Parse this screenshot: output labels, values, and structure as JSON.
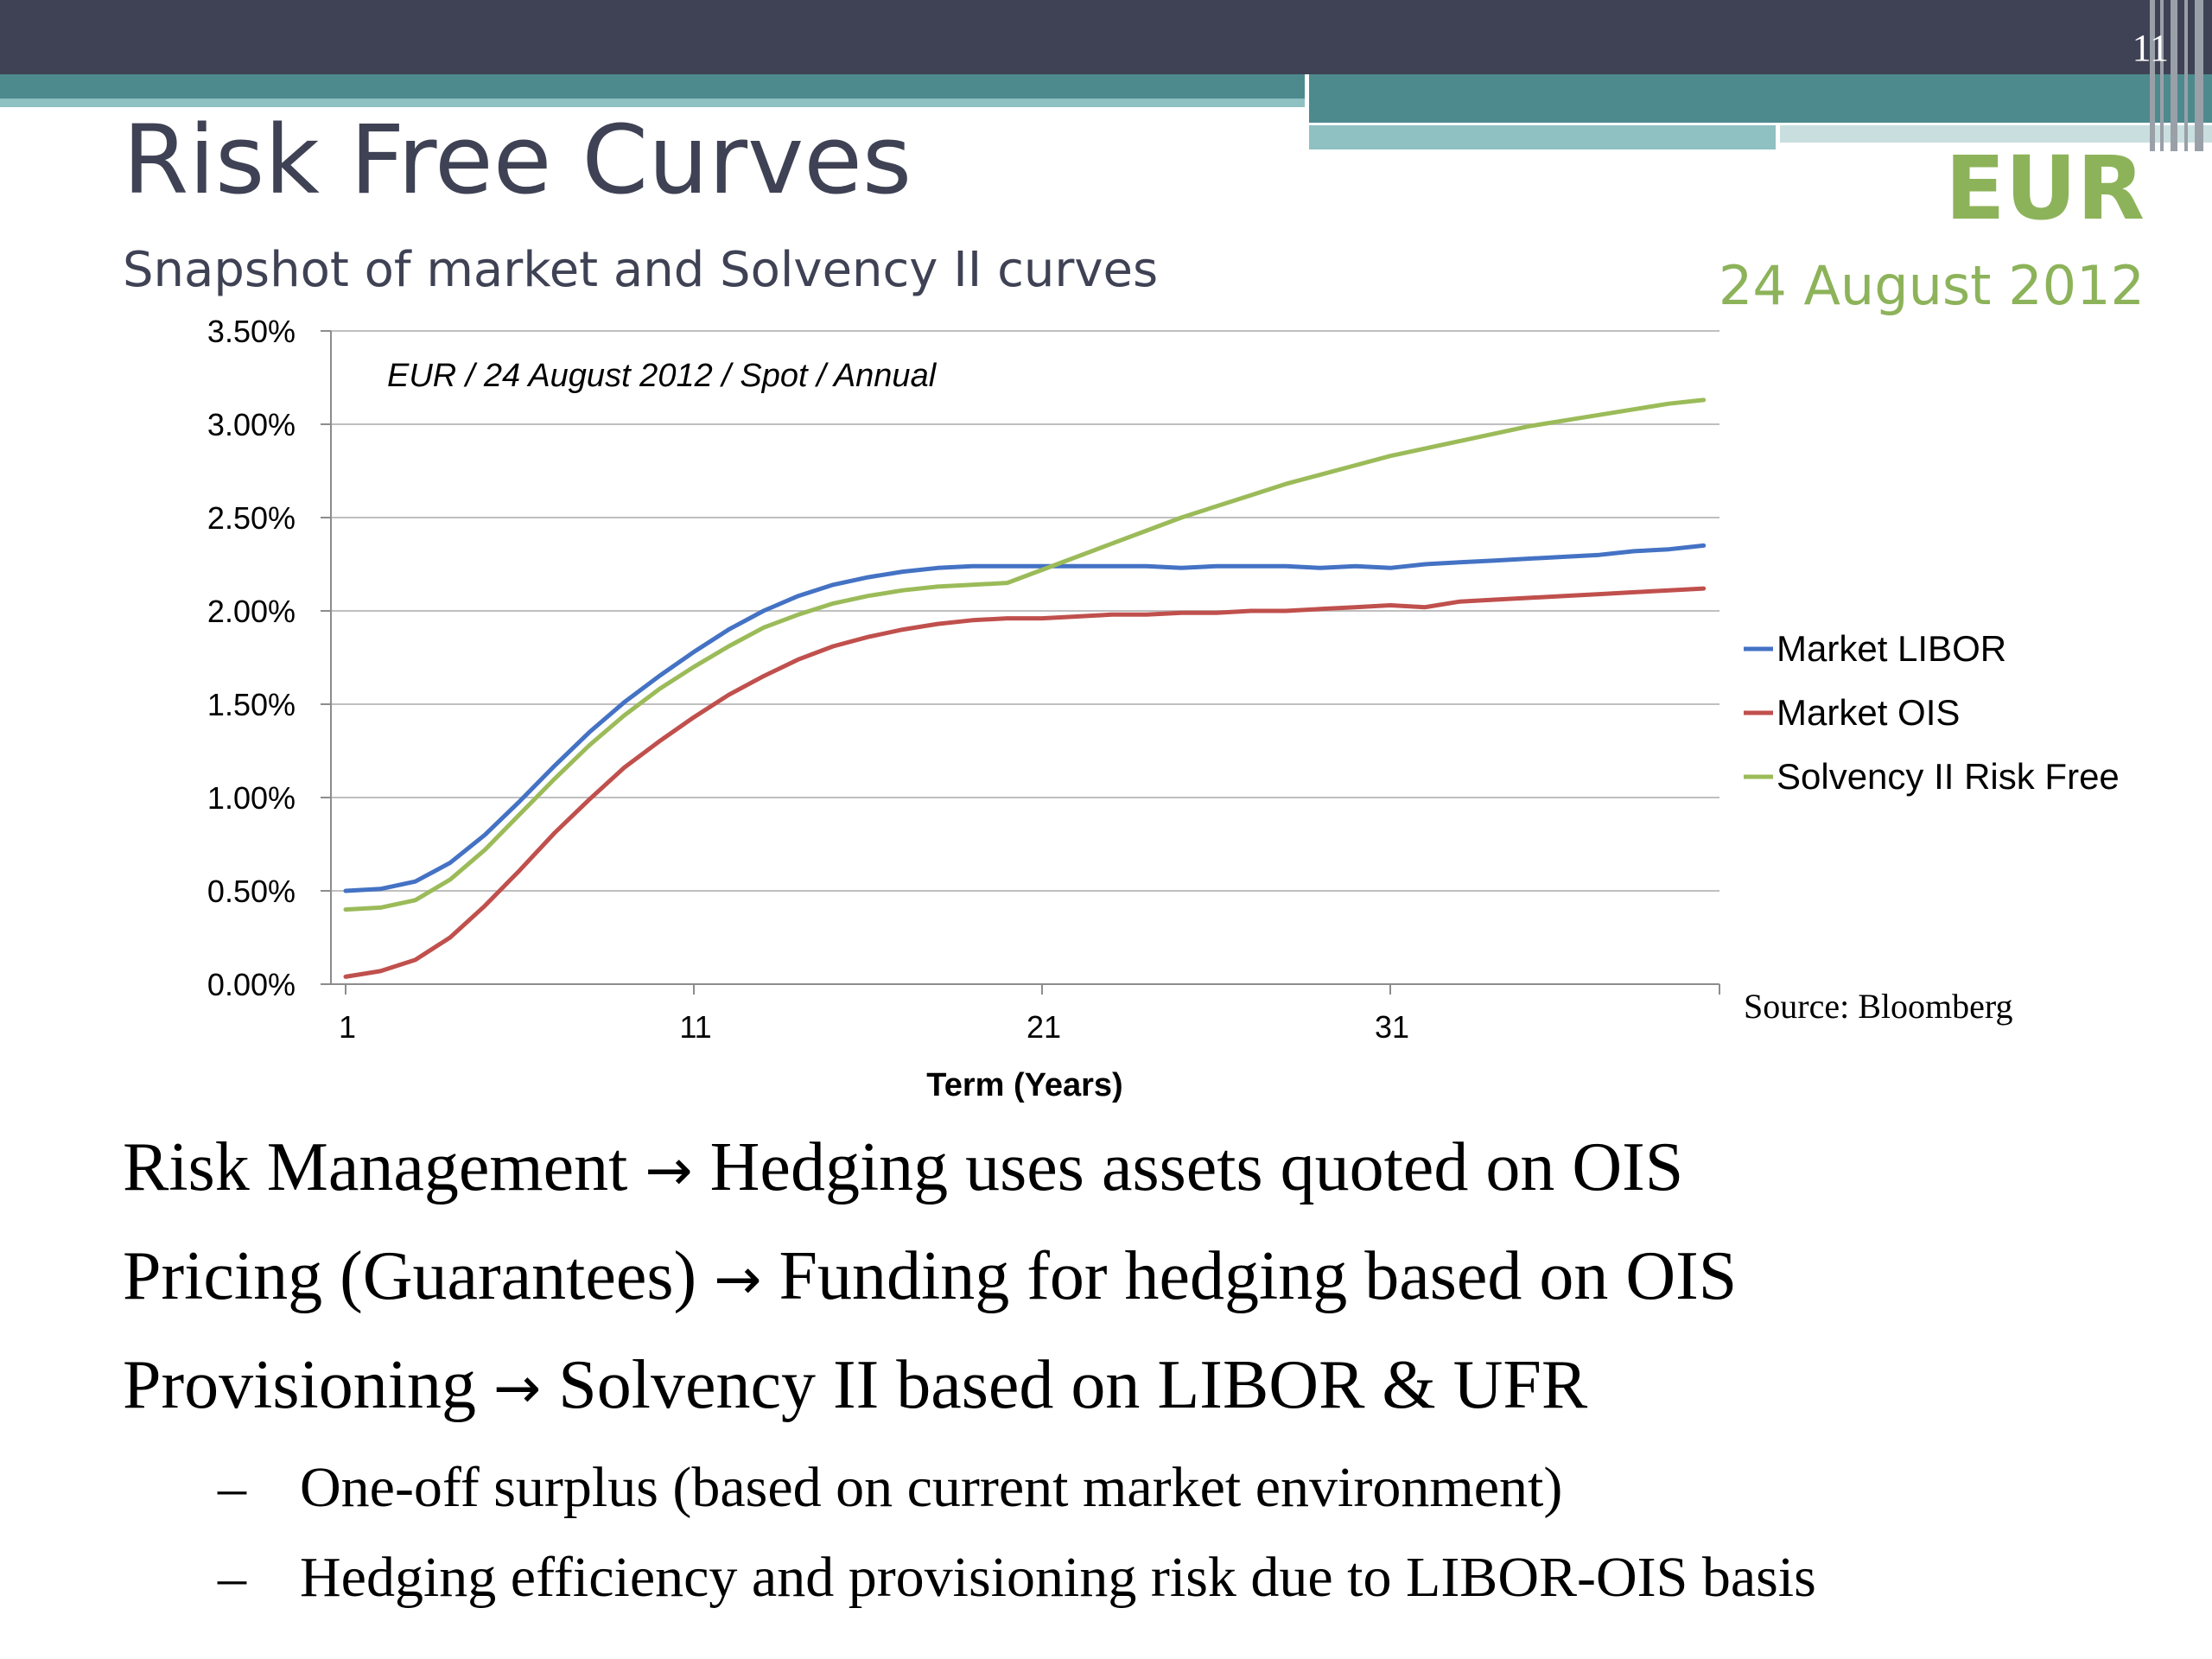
{
  "slide_number": "11",
  "title": "Risk Free Curves",
  "subtitle": "Snapshot of market and Solvency II curves",
  "currency": "EUR",
  "date": "24 August 2012",
  "source": "Source: Bloomberg",
  "colors": {
    "libor": "#4472c4",
    "ois": "#c0504d",
    "solvency": "#9bbb59",
    "title": "#3f4254",
    "accent": "#8db35a"
  },
  "chart_data": {
    "type": "line",
    "annotation": "EUR / 24 August 2012 / Spot / Annual",
    "xlabel": "Term (Years)",
    "ylabel": "",
    "x_ticks": [
      1,
      11,
      21,
      31
    ],
    "y_ticks": [
      "0.00%",
      "0.50%",
      "1.00%",
      "1.50%",
      "2.00%",
      "2.50%",
      "3.00%",
      "3.50%"
    ],
    "xlim": [
      1,
      40
    ],
    "ylim": [
      0,
      3.5
    ],
    "legend_position": "right",
    "x": [
      1,
      2,
      3,
      4,
      5,
      6,
      7,
      8,
      9,
      10,
      11,
      12,
      13,
      14,
      15,
      16,
      17,
      18,
      19,
      20,
      21,
      22,
      23,
      24,
      25,
      26,
      27,
      28,
      29,
      30,
      31,
      32,
      33,
      34,
      35,
      36,
      37,
      38,
      39,
      40
    ],
    "series": [
      {
        "name": "Market LIBOR",
        "color": "#4472c4",
        "values": [
          0.5,
          0.51,
          0.55,
          0.65,
          0.8,
          0.98,
          1.17,
          1.35,
          1.51,
          1.65,
          1.78,
          1.9,
          2.0,
          2.08,
          2.14,
          2.18,
          2.21,
          2.23,
          2.24,
          2.24,
          2.24,
          2.24,
          2.24,
          2.24,
          2.23,
          2.24,
          2.24,
          2.24,
          2.23,
          2.24,
          2.23,
          2.25,
          2.26,
          2.27,
          2.28,
          2.29,
          2.3,
          2.32,
          2.33,
          2.35
        ]
      },
      {
        "name": "Market OIS",
        "color": "#c0504d",
        "values": [
          0.04,
          0.07,
          0.13,
          0.25,
          0.42,
          0.61,
          0.81,
          0.99,
          1.16,
          1.3,
          1.43,
          1.55,
          1.65,
          1.74,
          1.81,
          1.86,
          1.9,
          1.93,
          1.95,
          1.96,
          1.96,
          1.97,
          1.98,
          1.98,
          1.99,
          1.99,
          2.0,
          2.0,
          2.01,
          2.02,
          2.03,
          2.02,
          2.05,
          2.06,
          2.07,
          2.08,
          2.09,
          2.1,
          2.11,
          2.12
        ]
      },
      {
        "name": "Solvency II Risk Free",
        "color": "#9bbb59",
        "values": [
          0.4,
          0.41,
          0.45,
          0.56,
          0.72,
          0.91,
          1.1,
          1.28,
          1.44,
          1.58,
          1.7,
          1.81,
          1.91,
          1.98,
          2.04,
          2.08,
          2.11,
          2.13,
          2.14,
          2.15,
          2.22,
          2.29,
          2.36,
          2.43,
          2.5,
          2.56,
          2.62,
          2.68,
          2.73,
          2.78,
          2.83,
          2.87,
          2.91,
          2.95,
          2.99,
          3.02,
          3.05,
          3.08,
          3.11,
          3.13
        ]
      }
    ]
  },
  "bullets": [
    {
      "left": "Risk Management",
      "arrow": "→",
      "right": "Hedging uses assets quoted on OIS"
    },
    {
      "left": "Pricing (Guarantees)",
      "arrow": "→",
      "right": "Funding for hedging based on OIS"
    },
    {
      "left": "Provisioning",
      "arrow": "→",
      "right": "Solvency II based on LIBOR & UFR"
    }
  ],
  "subbullets": [
    {
      "dash": "–",
      "text": "One-off surplus (based on current market environment)"
    },
    {
      "dash": "–",
      "text": "Hedging efficiency and provisioning risk due to LIBOR-OIS basis"
    }
  ]
}
